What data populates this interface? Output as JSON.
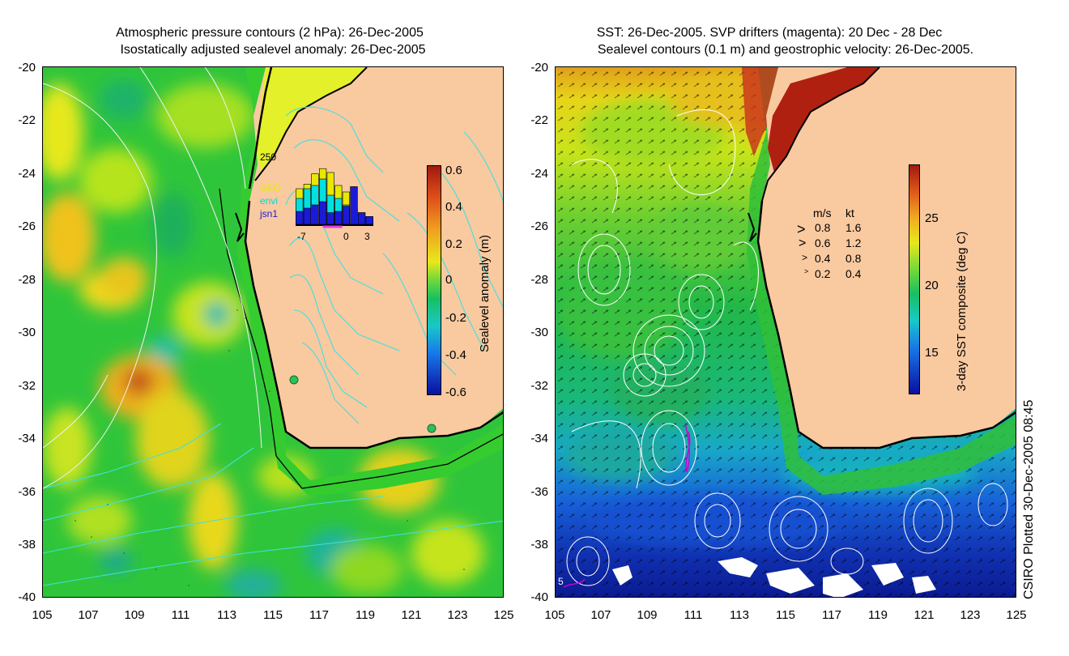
{
  "left_panel": {
    "title_line1": "Atmospheric pressure contours (2 hPa): 26-Dec-2005",
    "title_line2": "Isostatically adjusted sealevel anomaly: 26-Dec-2005",
    "y_ticks": [
      "-20",
      "-22",
      "-24",
      "-26",
      "-28",
      "-30",
      "-32",
      "-34",
      "-36",
      "-38",
      "-40"
    ],
    "x_ticks": [
      "105",
      "107",
      "109",
      "111",
      "113",
      "115",
      "117",
      "119",
      "121",
      "123",
      "125"
    ],
    "colorbar_label": "Sealevel anomaly (m)",
    "colorbar_ticks": [
      "0.6",
      "0.4",
      "0.2",
      "0",
      "-0.2",
      "-0.4",
      "-0.6"
    ],
    "inset": {
      "y_max_label": "250",
      "legend": [
        {
          "label": "GFO",
          "color": "#e8e800"
        },
        {
          "label": "envi",
          "color": "#00e0e0"
        },
        {
          "label": "jsn1",
          "color": "#1a1ad8"
        }
      ],
      "x_labels": [
        "-7",
        "0",
        "3"
      ],
      "bars": [
        {
          "gfo": 0.55,
          "envi": 0.4,
          "jsn1": 0.2
        },
        {
          "gfo": 0.62,
          "envi": 0.55,
          "jsn1": 0.25
        },
        {
          "gfo": 0.78,
          "envi": 0.6,
          "jsn1": 0.3
        },
        {
          "gfo": 0.86,
          "envi": 0.7,
          "jsn1": 0.35
        },
        {
          "gfo": 0.8,
          "envi": 0.45,
          "jsn1": 0.18
        },
        {
          "gfo": 0.6,
          "envi": 0.4,
          "jsn1": 0.2
        },
        {
          "gfo": 0.5,
          "envi": 0.3,
          "jsn1": 0.28
        },
        {
          "gfo": 0.58,
          "envi": 0.25,
          "jsn1": 0.58
        },
        {
          "gfo": 0.18,
          "envi": 0.12,
          "jsn1": 0.18
        },
        {
          "gfo": 0.12,
          "envi": 0.08,
          "jsn1": 0.12
        }
      ]
    }
  },
  "right_panel": {
    "title_line1": "SST: 26-Dec-2005. SVP drifters (magenta): 20 Dec - 28 Dec",
    "title_line2": "Sealevel contours (0.1 m) and geostrophic velocity: 26-Dec-2005.",
    "y_ticks": [
      "-20",
      "-22",
      "-24",
      "-26",
      "-28",
      "-30",
      "-32",
      "-34",
      "-36",
      "-38",
      "-40"
    ],
    "x_ticks": [
      "105",
      "107",
      "109",
      "111",
      "113",
      "115",
      "117",
      "119",
      "121",
      "123",
      "125"
    ],
    "colorbar_label": "3-day SST composite (deg C)",
    "colorbar_ticks": [
      "25",
      "20",
      "15"
    ],
    "velocity_legend": {
      "header_ms": "m/s",
      "header_kt": "kt",
      "rows": [
        {
          "ms": "0.8",
          "kt": "1.6"
        },
        {
          "ms": "0.6",
          "kt": "1.2"
        },
        {
          "ms": "0.4",
          "kt": "0.8"
        },
        {
          "ms": "0.2",
          "kt": "0.4"
        }
      ]
    },
    "corner_label": "5"
  },
  "footer": {
    "plotted_label": "CSIRO Plotted 30-Dec-2005 08:45"
  },
  "colors": {
    "land": "#f9c9a0",
    "ocean_green": "#33c833",
    "coast": "#000000",
    "contour_cyan": "#40e0e0",
    "contour_white": "#ffffff",
    "drifter_magenta": "#d000d0"
  }
}
